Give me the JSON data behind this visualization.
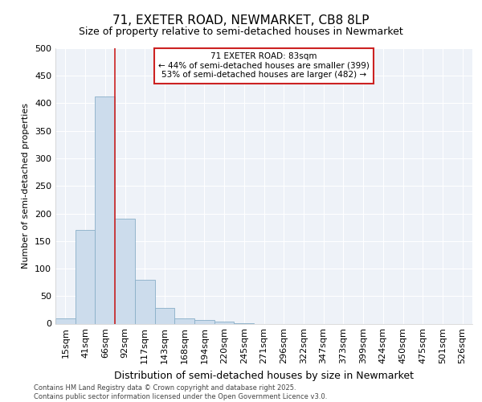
{
  "title": "71, EXETER ROAD, NEWMARKET, CB8 8LP",
  "subtitle": "Size of property relative to semi-detached houses in Newmarket",
  "xlabel": "Distribution of semi-detached houses by size in Newmarket",
  "ylabel": "Number of semi-detached properties",
  "categories": [
    "15sqm",
    "41sqm",
    "66sqm",
    "92sqm",
    "117sqm",
    "143sqm",
    "168sqm",
    "194sqm",
    "220sqm",
    "245sqm",
    "271sqm",
    "296sqm",
    "322sqm",
    "347sqm",
    "373sqm",
    "399sqm",
    "424sqm",
    "450sqm",
    "475sqm",
    "501sqm",
    "526sqm"
  ],
  "values": [
    9,
    170,
    413,
    190,
    80,
    28,
    9,
    6,
    4,
    1,
    0,
    0,
    0,
    0,
    0,
    0,
    0,
    0,
    0,
    0,
    0
  ],
  "bar_color": "#ccdcec",
  "bar_edge_color": "#89afc8",
  "vline_x": 2.5,
  "vline_color": "#cc2222",
  "annotation_title": "71 EXETER ROAD: 83sqm",
  "annotation_line1": "← 44% of semi-detached houses are smaller (399)",
  "annotation_line2": "53% of semi-detached houses are larger (482) →",
  "annotation_box_facecolor": "#ffffff",
  "annotation_box_edgecolor": "#cc2222",
  "ylim": [
    0,
    500
  ],
  "yticks": [
    0,
    50,
    100,
    150,
    200,
    250,
    300,
    350,
    400,
    450,
    500
  ],
  "background_color": "#eef2f8",
  "grid_color": "#ffffff",
  "footer": "Contains HM Land Registry data © Crown copyright and database right 2025.\nContains public sector information licensed under the Open Government Licence v3.0.",
  "title_fontsize": 11,
  "subtitle_fontsize": 9,
  "xlabel_fontsize": 9,
  "ylabel_fontsize": 8,
  "tick_fontsize": 8,
  "annot_fontsize": 7.5
}
